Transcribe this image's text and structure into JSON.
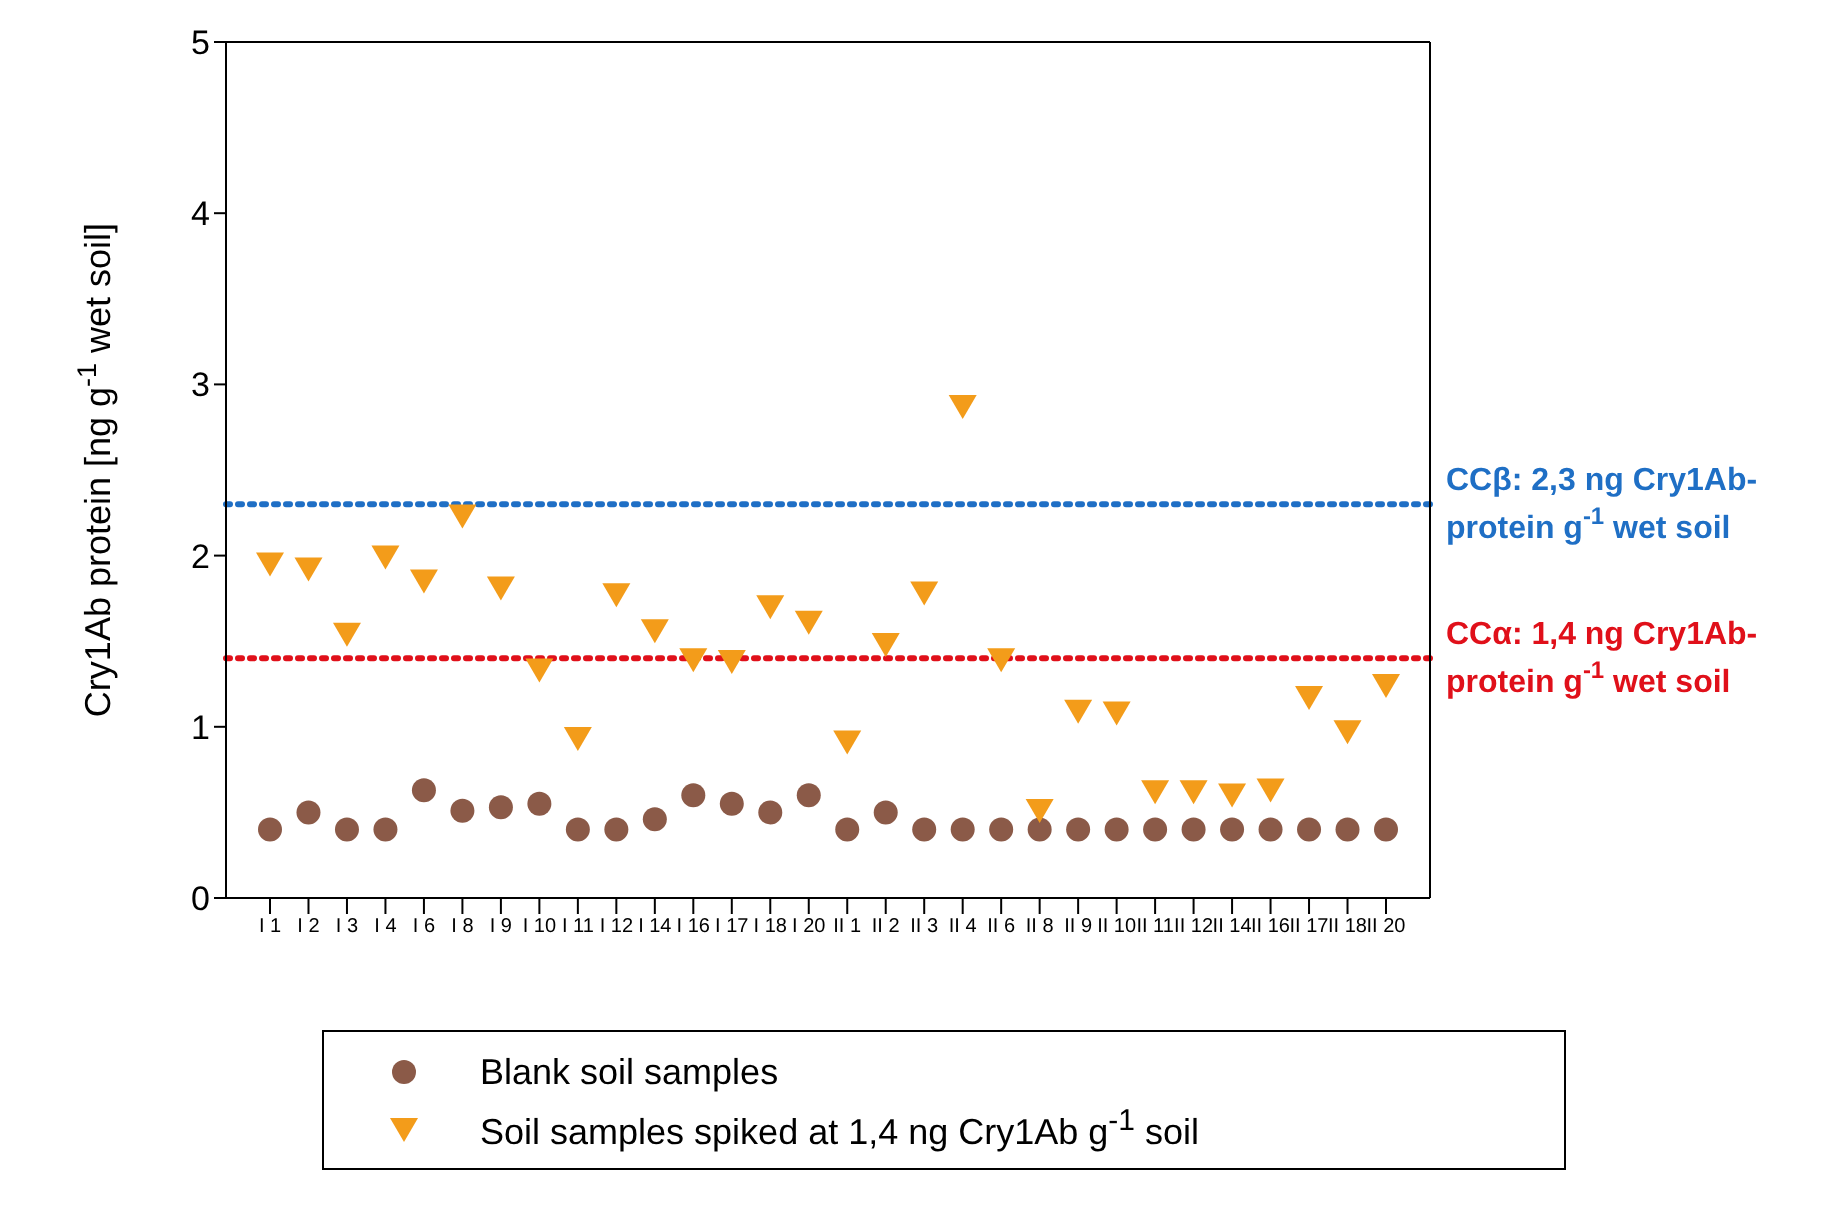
{
  "chart_data": {
    "type": "scatter",
    "ylabel": "Cry1Ab protein [ng g$^{-1}$ wet soil]",
    "categories": [
      "I 1",
      "I 2",
      "I 3",
      "I 4",
      "I 6",
      "I 8",
      "I 9",
      "I 10",
      "I 11",
      "I 12",
      "I 14",
      "I 16",
      "I 17",
      "I 18",
      "I 20",
      "II 1",
      "II 2",
      "II 3",
      "II 4",
      "II 6",
      "II 8",
      "II 9",
      "II 10",
      "II 11",
      "II 12",
      "II 14",
      "II 16",
      "II 17",
      "II 18",
      "II 20"
    ],
    "series": [
      {
        "name": "Blank soil samples",
        "color": "#8b5a48",
        "marker": "circle",
        "values": [
          0.4,
          0.5,
          0.4,
          0.4,
          0.63,
          0.51,
          0.53,
          0.55,
          0.4,
          0.4,
          0.46,
          0.6,
          0.55,
          0.5,
          0.6,
          0.4,
          0.5,
          0.4,
          0.4,
          0.4,
          0.4,
          0.4,
          0.4,
          0.4,
          0.4,
          0.4,
          0.4,
          0.4,
          0.4,
          0.4
        ]
      },
      {
        "name": "Soil samples spiked at 1,4 ng Cry1Ab g$^{-1}$ soil",
        "color": "#f39c1a",
        "marker": "triangle",
        "values": [
          1.96,
          1.93,
          1.55,
          2.0,
          1.86,
          2.24,
          1.82,
          1.34,
          0.94,
          1.78,
          1.57,
          1.4,
          1.39,
          1.71,
          1.62,
          0.92,
          1.49,
          1.79,
          2.88,
          1.4,
          0.52,
          1.1,
          1.09,
          0.63,
          0.63,
          0.61,
          0.64,
          1.18,
          0.98,
          1.25
        ]
      }
    ],
    "ylim": [
      0,
      5
    ],
    "yticks": [
      0,
      1,
      2,
      3,
      4,
      5
    ],
    "grid": false,
    "legend": "bottom",
    "ref_lines": [
      {
        "axis": "y",
        "value": 2.3,
        "label": "CCβ: 2,3 ng Cry1Ab-protein g$^{-1}$ wet soil",
        "color": "#1f6fc5",
        "line_style": "dotted"
      },
      {
        "axis": "y",
        "value": 1.4,
        "label": "CCα: 1,4 ng Cry1Ab-protein g$^{-1}$ wet soil",
        "color": "#e0101a",
        "line_style": "dotted"
      }
    ]
  }
}
